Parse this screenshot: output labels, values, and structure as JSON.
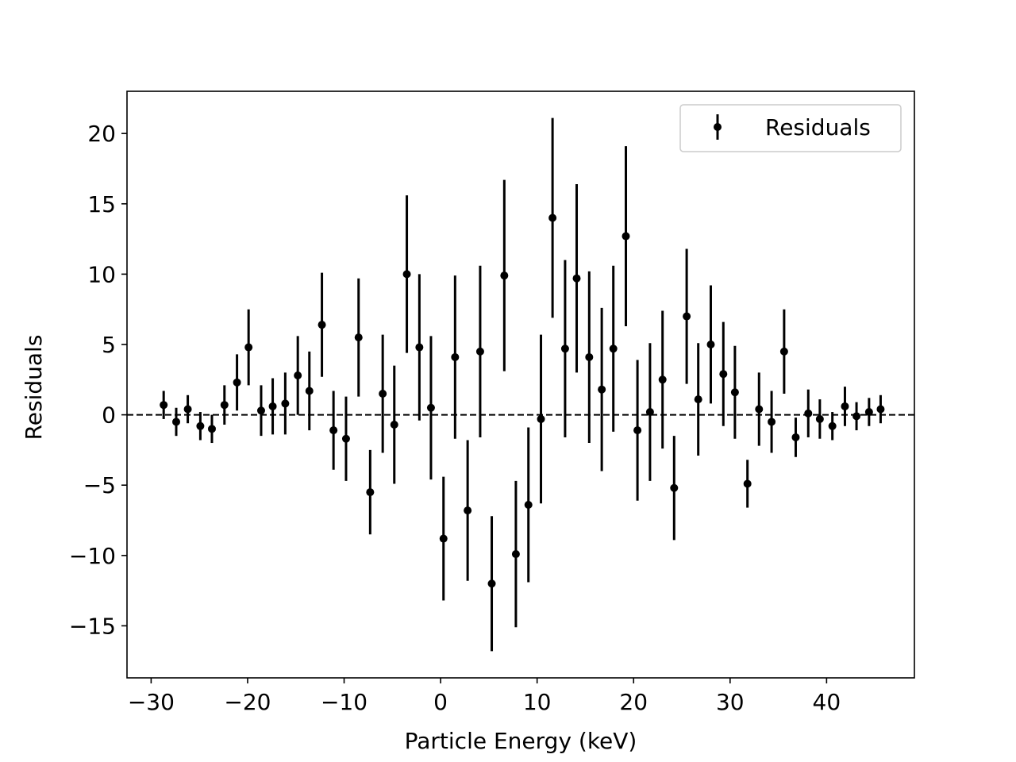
{
  "chart_data": {
    "type": "scatter",
    "title": "",
    "xlabel": "Particle Energy (keV)",
    "ylabel": "Residuals",
    "xlim": [
      -32.5,
      49.1
    ],
    "ylim": [
      -18.7,
      23.0
    ],
    "xticks": [
      -30,
      -20,
      -10,
      0,
      10,
      20,
      30,
      40
    ],
    "yticks": [
      -15,
      -10,
      -5,
      0,
      5,
      10,
      15,
      20
    ],
    "xtick_labels": [
      "−30",
      "−20",
      "−10",
      "0",
      "10",
      "20",
      "30",
      "40"
    ],
    "ytick_labels": [
      "−15",
      "−10",
      "−5",
      "0",
      "5",
      "10",
      "15",
      "20"
    ],
    "grid": false,
    "legend_position": "top-right",
    "reference_line": {
      "y": 0,
      "style": "dashed",
      "color": "#000000"
    },
    "series": [
      {
        "name": "Residuals",
        "color": "#000000",
        "marker": "dot-with-errorbar",
        "x": [
          -28.7,
          -27.4,
          -26.2,
          -24.9,
          -23.7,
          -22.4,
          -21.1,
          -19.9,
          -18.6,
          -17.4,
          -16.1,
          -14.8,
          -13.6,
          -12.3,
          -11.1,
          -9.8,
          -8.5,
          -7.3,
          -6.0,
          -4.8,
          -3.5,
          -2.2,
          -1.0,
          0.3,
          1.5,
          2.8,
          4.1,
          5.3,
          6.6,
          7.8,
          9.1,
          10.4,
          11.6,
          12.9,
          14.1,
          15.4,
          16.7,
          17.9,
          19.2,
          20.4,
          21.7,
          23.0,
          24.2,
          25.5,
          26.7,
          28.0,
          29.3,
          30.5,
          31.8,
          33.0,
          34.3,
          35.6,
          36.8,
          38.1,
          39.3,
          40.6,
          41.9,
          43.1,
          44.4,
          45.6
        ],
        "y": [
          0.7,
          -0.5,
          0.4,
          -0.8,
          -1.0,
          0.7,
          2.3,
          4.8,
          0.3,
          0.6,
          0.8,
          2.8,
          1.7,
          6.4,
          -1.1,
          -1.7,
          5.5,
          -5.5,
          1.5,
          -0.7,
          10.0,
          4.8,
          0.5,
          -8.8,
          4.1,
          -6.8,
          4.5,
          -12.0,
          9.9,
          -9.9,
          -6.4,
          -0.3,
          14.0,
          4.7,
          9.7,
          4.1,
          1.8,
          4.7,
          12.7,
          -1.1,
          0.2,
          2.5,
          -5.2,
          7.0,
          1.1,
          5.0,
          2.9,
          1.6,
          -4.9,
          0.4,
          -0.5,
          4.5,
          -1.6,
          0.1,
          -0.3,
          -0.8,
          0.6,
          -0.1,
          0.2,
          0.4
        ],
        "yerr": [
          1.0,
          1.0,
          1.0,
          1.0,
          1.0,
          1.4,
          2.0,
          2.7,
          1.8,
          2.0,
          2.2,
          2.8,
          2.8,
          3.7,
          2.8,
          3.0,
          4.2,
          3.0,
          4.2,
          4.2,
          5.6,
          5.2,
          5.1,
          4.4,
          5.8,
          5.0,
          6.1,
          4.8,
          6.8,
          5.2,
          5.5,
          6.0,
          7.1,
          6.3,
          6.7,
          6.1,
          5.8,
          5.9,
          6.4,
          5.0,
          4.9,
          4.9,
          3.7,
          4.8,
          4.0,
          4.2,
          3.7,
          3.3,
          1.7,
          2.6,
          2.2,
          3.0,
          1.4,
          1.7,
          1.4,
          1.0,
          1.4,
          1.0,
          1.0,
          1.0
        ]
      }
    ]
  }
}
